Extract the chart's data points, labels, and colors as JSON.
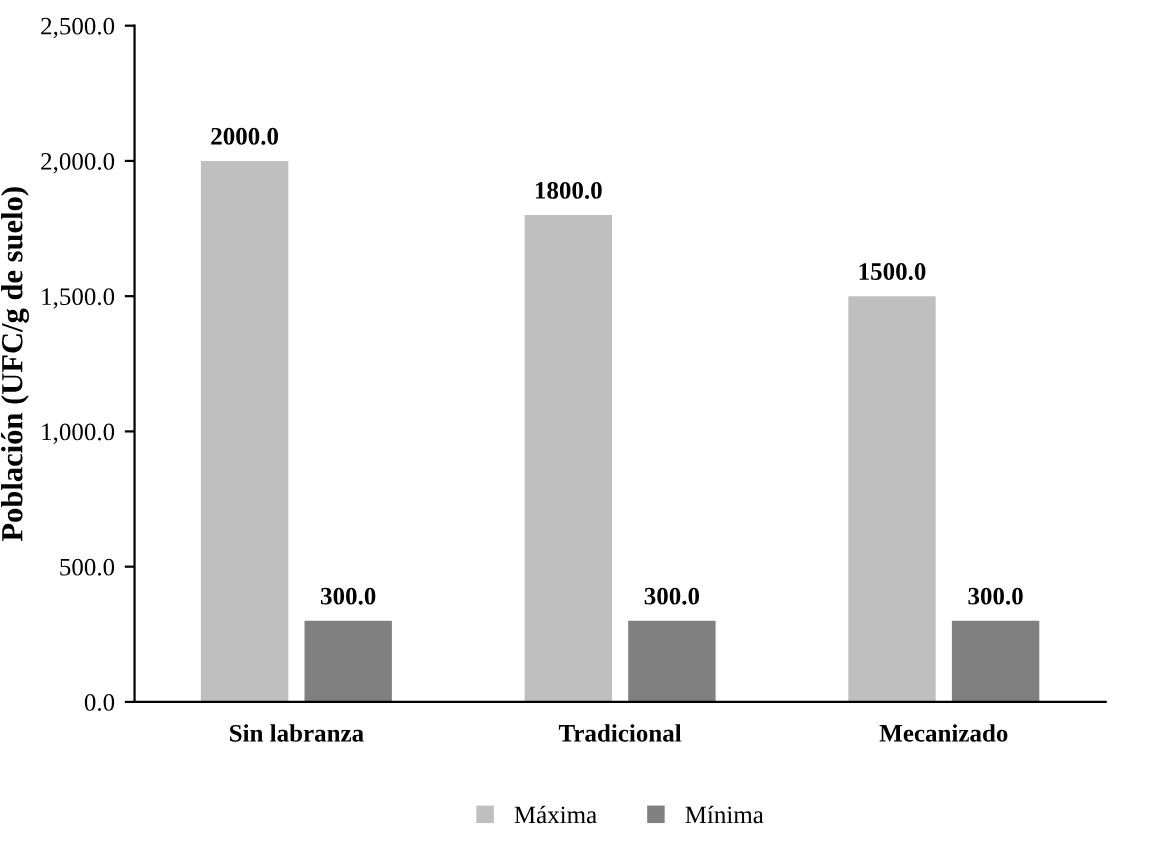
{
  "chart_data": {
    "type": "bar",
    "ylabel": "Población (UFC/g de suelo)",
    "categories": [
      "Sin labranza",
      "Tradicional",
      "Mecanizado"
    ],
    "series": [
      {
        "name": "Máxima",
        "color": "#bfbfbf",
        "values": [
          2000,
          1800,
          1500
        ],
        "value_labels": [
          "2000.0",
          "1800.0",
          "1500.0"
        ]
      },
      {
        "name": "Mínima",
        "color": "#808080",
        "values": [
          300,
          300,
          300
        ],
        "value_labels": [
          "300.0",
          "300.0",
          "300.0"
        ]
      }
    ],
    "ylim": [
      0,
      2500
    ],
    "yticks": [
      {
        "value": 0,
        "label": "0.0"
      },
      {
        "value": 500,
        "label": "500.0"
      },
      {
        "value": 1000,
        "label": "1,000.0"
      },
      {
        "value": 1500,
        "label": "1,500.0"
      },
      {
        "value": 2000,
        "label": "2,000.0"
      },
      {
        "value": 2500,
        "label": "2,500.0"
      }
    ],
    "grid": false,
    "legend": "bottom"
  }
}
